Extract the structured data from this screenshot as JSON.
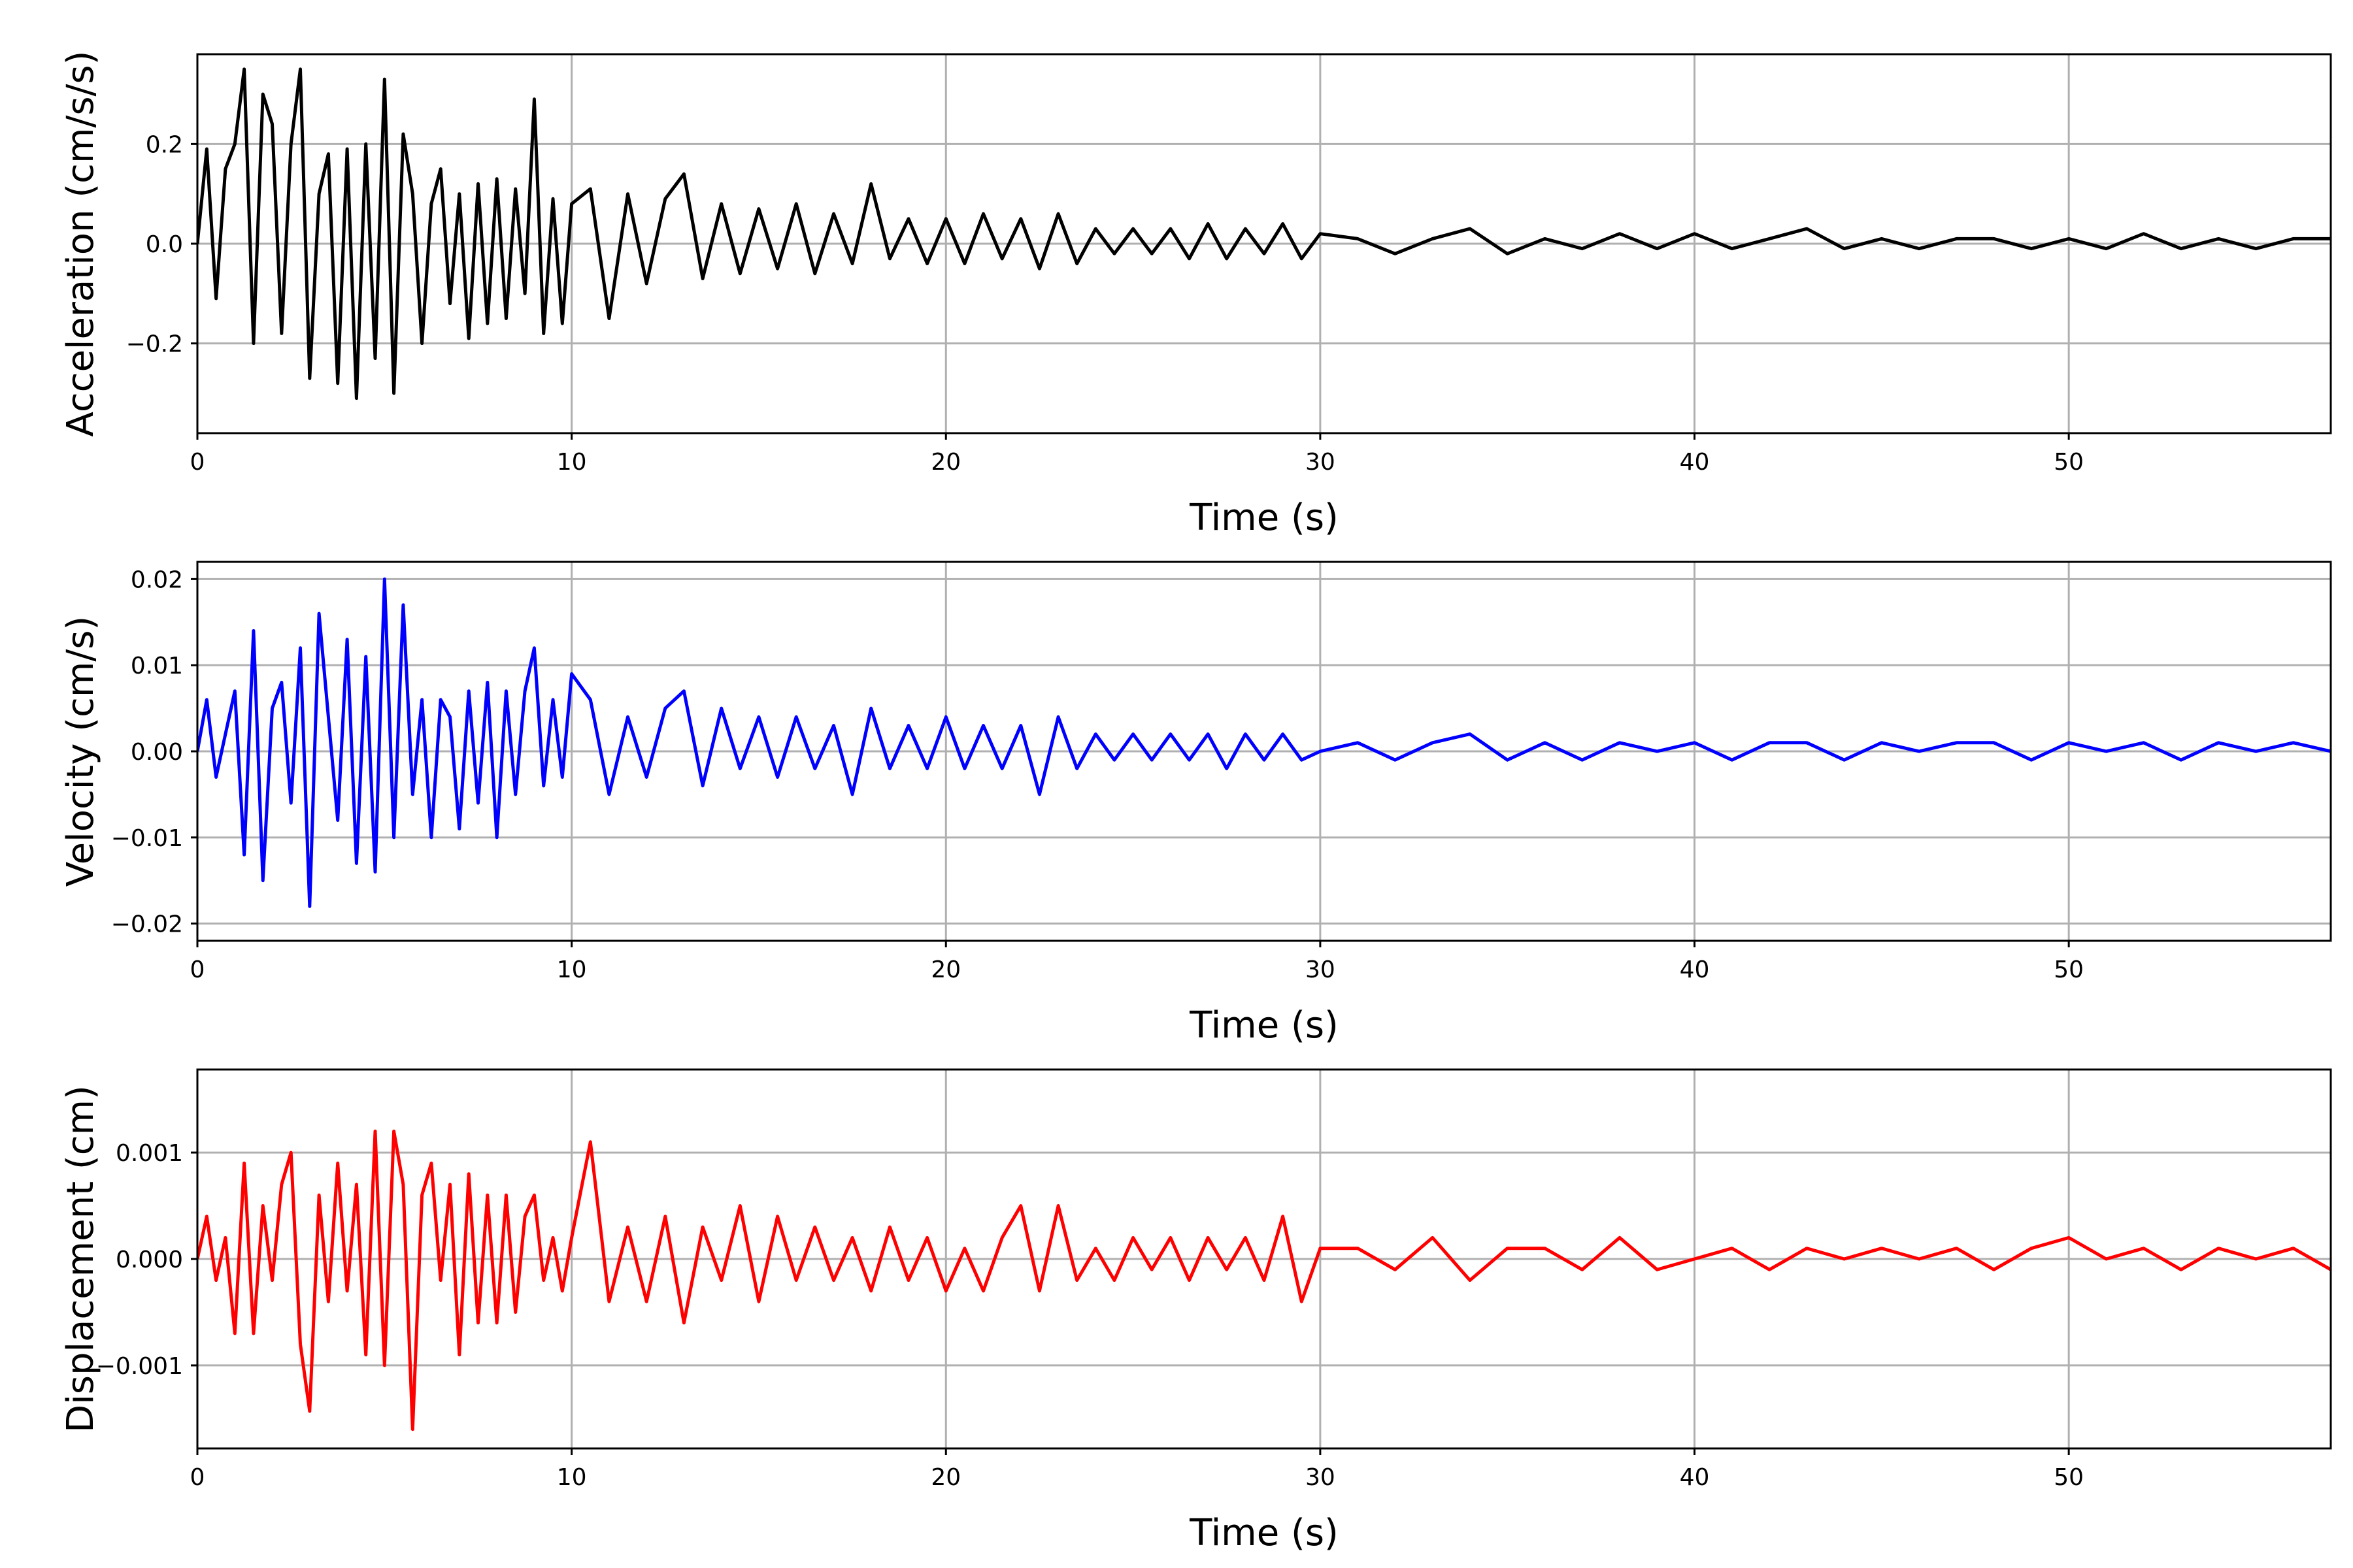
{
  "chart_data": [
    {
      "type": "line",
      "id": "acceleration",
      "xlabel": "Time (s)",
      "ylabel": "Acceleration (cm/s/s)",
      "xlim": [
        0,
        57
      ],
      "ylim": [
        -0.38,
        0.38
      ],
      "xticks": [
        0,
        10,
        20,
        30,
        40,
        50
      ],
      "yticks": [
        -0.2,
        0.0,
        0.2
      ],
      "ytick_labels": [
        "−0.2",
        "0.0",
        "0.2"
      ],
      "grid": true,
      "color": "#000000",
      "series": [
        {
          "x": [
            0,
            0.25,
            0.5,
            0.75,
            1,
            1.25,
            1.5,
            1.75,
            2,
            2.25,
            2.5,
            2.75,
            3,
            3.25,
            3.5,
            3.75,
            4,
            4.25,
            4.5,
            4.75,
            5,
            5.25,
            5.5,
            5.75,
            6,
            6.25,
            6.5,
            6.75,
            7,
            7.25,
            7.5,
            7.75,
            8,
            8.25,
            8.5,
            8.75,
            9,
            9.25,
            9.5,
            9.75,
            10,
            10.5,
            11,
            11.5,
            12,
            12.5,
            13,
            13.5,
            14,
            14.5,
            15,
            15.5,
            16,
            16.5,
            17,
            17.5,
            18,
            18.5,
            19,
            19.5,
            20,
            20.5,
            21,
            21.5,
            22,
            22.5,
            23,
            23.5,
            24,
            24.5,
            25,
            25.5,
            26,
            26.5,
            27,
            27.5,
            28,
            28.5,
            29,
            29.5,
            30,
            31,
            32,
            33,
            34,
            35,
            36,
            37,
            38,
            39,
            40,
            41,
            42,
            43,
            44,
            45,
            46,
            47,
            48,
            49,
            50,
            51,
            52,
            53,
            54,
            55,
            56,
            57
          ],
          "values": [
            0.0,
            0.19,
            -0.11,
            0.15,
            0.2,
            0.35,
            -0.2,
            0.3,
            0.24,
            -0.18,
            0.2,
            0.35,
            -0.27,
            0.1,
            0.18,
            -0.28,
            0.19,
            -0.31,
            0.2,
            -0.23,
            0.33,
            -0.3,
            0.22,
            0.1,
            -0.2,
            0.08,
            0.15,
            -0.12,
            0.1,
            -0.19,
            0.12,
            -0.16,
            0.13,
            -0.15,
            0.11,
            -0.1,
            0.29,
            -0.18,
            0.09,
            -0.16,
            0.08,
            0.11,
            -0.15,
            0.1,
            -0.08,
            0.09,
            0.14,
            -0.07,
            0.08,
            -0.06,
            0.07,
            -0.05,
            0.08,
            -0.06,
            0.06,
            -0.04,
            0.12,
            -0.03,
            0.05,
            -0.04,
            0.05,
            -0.04,
            0.06,
            -0.03,
            0.05,
            -0.05,
            0.06,
            -0.04,
            0.03,
            -0.02,
            0.03,
            -0.02,
            0.03,
            -0.03,
            0.04,
            -0.03,
            0.03,
            -0.02,
            0.04,
            -0.03,
            0.02,
            0.01,
            -0.02,
            0.01,
            0.03,
            -0.02,
            0.01,
            -0.01,
            0.02,
            -0.01,
            0.02,
            -0.01,
            0.01,
            0.03,
            -0.01,
            0.01,
            -0.01,
            0.01,
            0.01,
            -0.01,
            0.01,
            -0.01,
            0.02,
            -0.01,
            0.01,
            -0.01,
            0.01,
            0.01
          ]
        }
      ]
    },
    {
      "type": "line",
      "id": "velocity",
      "xlabel": "Time (s)",
      "ylabel": "Velocity (cm/s)",
      "xlim": [
        0,
        57
      ],
      "ylim": [
        -0.022,
        0.022
      ],
      "xticks": [
        0,
        10,
        20,
        30,
        40,
        50
      ],
      "yticks": [
        -0.02,
        -0.01,
        0.0,
        0.01,
        0.02
      ],
      "ytick_labels": [
        "−0.02",
        "−0.01",
        "0.00",
        "0.01",
        "0.02"
      ],
      "grid": true,
      "color": "#0000ff",
      "series": [
        {
          "x": [
            0,
            0.25,
            0.5,
            0.75,
            1,
            1.25,
            1.5,
            1.75,
            2,
            2.25,
            2.5,
            2.75,
            3,
            3.25,
            3.5,
            3.75,
            4,
            4.25,
            4.5,
            4.75,
            5,
            5.25,
            5.5,
            5.75,
            6,
            6.25,
            6.5,
            6.75,
            7,
            7.25,
            7.5,
            7.75,
            8,
            8.25,
            8.5,
            8.75,
            9,
            9.25,
            9.5,
            9.75,
            10,
            10.5,
            11,
            11.5,
            12,
            12.5,
            13,
            13.5,
            14,
            14.5,
            15,
            15.5,
            16,
            16.5,
            17,
            17.5,
            18,
            18.5,
            19,
            19.5,
            20,
            20.5,
            21,
            21.5,
            22,
            22.5,
            23,
            23.5,
            24,
            24.5,
            25,
            25.5,
            26,
            26.5,
            27,
            27.5,
            28,
            28.5,
            29,
            29.5,
            30,
            31,
            32,
            33,
            34,
            35,
            36,
            37,
            38,
            39,
            40,
            41,
            42,
            43,
            44,
            45,
            46,
            47,
            48,
            49,
            50,
            51,
            52,
            53,
            54,
            55,
            56,
            57
          ],
          "values": [
            0.0,
            0.006,
            -0.003,
            0.002,
            0.007,
            -0.012,
            0.014,
            -0.015,
            0.005,
            0.008,
            -0.006,
            0.012,
            -0.018,
            0.016,
            0.004,
            -0.008,
            0.013,
            -0.013,
            0.011,
            -0.014,
            0.02,
            -0.01,
            0.017,
            -0.005,
            0.006,
            -0.01,
            0.006,
            0.004,
            -0.009,
            0.007,
            -0.006,
            0.008,
            -0.01,
            0.007,
            -0.005,
            0.007,
            0.012,
            -0.004,
            0.006,
            -0.003,
            0.009,
            0.006,
            -0.005,
            0.004,
            -0.003,
            0.005,
            0.007,
            -0.004,
            0.005,
            -0.002,
            0.004,
            -0.003,
            0.004,
            -0.002,
            0.003,
            -0.005,
            0.005,
            -0.002,
            0.003,
            -0.002,
            0.004,
            -0.002,
            0.003,
            -0.002,
            0.003,
            -0.005,
            0.004,
            -0.002,
            0.002,
            -0.001,
            0.002,
            -0.001,
            0.002,
            -0.001,
            0.002,
            -0.002,
            0.002,
            -0.001,
            0.002,
            -0.001,
            0.0,
            0.001,
            -0.001,
            0.001,
            0.002,
            -0.001,
            0.001,
            -0.001,
            0.001,
            0.0,
            0.001,
            -0.001,
            0.001,
            0.001,
            -0.001,
            0.001,
            0.0,
            0.001,
            0.001,
            -0.001,
            0.001,
            0.0,
            0.001,
            -0.001,
            0.001,
            0.0,
            0.001,
            0.0
          ]
        }
      ]
    },
    {
      "type": "line",
      "id": "displacement",
      "xlabel": "Time (s)",
      "ylabel": "Displacement (cm)",
      "xlim": [
        0,
        57
      ],
      "ylim": [
        -0.00178,
        0.00178
      ],
      "xticks": [
        0,
        10,
        20,
        30,
        40,
        50
      ],
      "yticks": [
        -0.001,
        0.0,
        0.001
      ],
      "ytick_labels": [
        "−0.001",
        "0.000",
        "0.001"
      ],
      "grid": true,
      "color": "#ff0000",
      "series": [
        {
          "x": [
            0,
            0.25,
            0.5,
            0.75,
            1,
            1.25,
            1.5,
            1.75,
            2,
            2.25,
            2.5,
            2.75,
            3,
            3.25,
            3.5,
            3.75,
            4,
            4.25,
            4.5,
            4.75,
            5,
            5.25,
            5.5,
            5.75,
            6,
            6.25,
            6.5,
            6.75,
            7,
            7.25,
            7.5,
            7.75,
            8,
            8.25,
            8.5,
            8.75,
            9,
            9.25,
            9.5,
            9.75,
            10,
            10.5,
            11,
            11.5,
            12,
            12.5,
            13,
            13.5,
            14,
            14.5,
            15,
            15.5,
            16,
            16.5,
            17,
            17.5,
            18,
            18.5,
            19,
            19.5,
            20,
            20.5,
            21,
            21.5,
            22,
            22.5,
            23,
            23.5,
            24,
            24.5,
            25,
            25.5,
            26,
            26.5,
            27,
            27.5,
            28,
            28.5,
            29,
            29.5,
            30,
            31,
            32,
            33,
            34,
            35,
            36,
            37,
            38,
            39,
            40,
            41,
            42,
            43,
            44,
            45,
            46,
            47,
            48,
            49,
            50,
            51,
            52,
            53,
            54,
            55,
            56,
            57
          ],
          "values": [
            0.0,
            0.0004,
            -0.0002,
            0.0002,
            -0.0007,
            0.0009,
            -0.0007,
            0.0005,
            -0.0002,
            0.0007,
            0.001,
            -0.0008,
            -0.00143,
            0.0006,
            -0.0004,
            0.0009,
            -0.0003,
            0.0007,
            -0.0009,
            0.0012,
            -0.001,
            0.0012,
            0.0007,
            -0.0016,
            0.0006,
            0.0009,
            -0.0002,
            0.0007,
            -0.0009,
            0.0008,
            -0.0006,
            0.0006,
            -0.0006,
            0.0006,
            -0.0005,
            0.0004,
            0.0006,
            -0.0002,
            0.0002,
            -0.0003,
            0.0002,
            0.0011,
            -0.0004,
            0.0003,
            -0.0004,
            0.0004,
            -0.0006,
            0.0003,
            -0.0002,
            0.0005,
            -0.0004,
            0.0004,
            -0.0002,
            0.0003,
            -0.0002,
            0.0002,
            -0.0003,
            0.0003,
            -0.0002,
            0.0002,
            -0.0003,
            0.0001,
            -0.0003,
            0.0002,
            0.0005,
            -0.0003,
            0.0005,
            -0.0002,
            0.0001,
            -0.0002,
            0.0002,
            -0.0001,
            0.0002,
            -0.0002,
            0.0002,
            -0.0001,
            0.0002,
            -0.0002,
            0.0004,
            -0.0004,
            0.0001,
            0.0001,
            -0.0001,
            0.0002,
            -0.0002,
            0.0001,
            0.0001,
            -0.0001,
            0.0002,
            -0.0001,
            0.0,
            0.0001,
            -0.0001,
            0.0001,
            0.0,
            0.0001,
            0.0,
            0.0001,
            -0.0001,
            0.0001,
            0.0002,
            0.0,
            0.0001,
            -0.0001,
            0.0001,
            0.0,
            0.0001,
            -0.0001
          ]
        }
      ]
    }
  ]
}
